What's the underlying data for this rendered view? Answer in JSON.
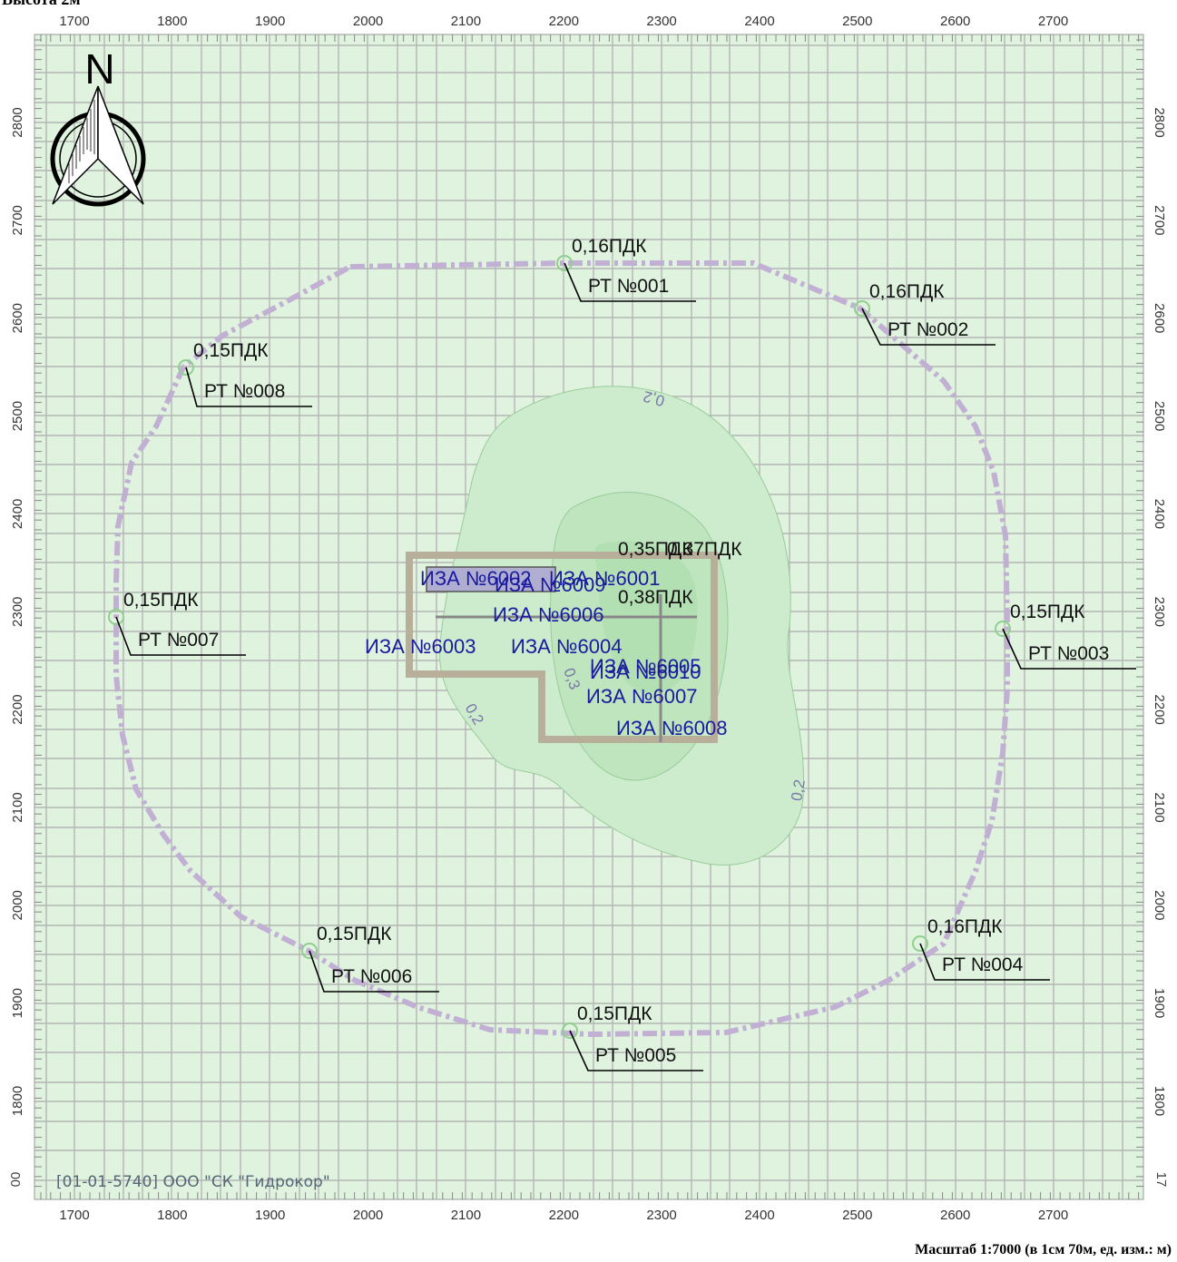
{
  "header": {
    "title": "Высота 2м"
  },
  "footer": {
    "scale_text": "Масштаб 1:7000 (в 1см 70м, ед. изм.: м)"
  },
  "map": {
    "x_ticks": [
      "1700",
      "1800",
      "1900",
      "2000",
      "2100",
      "2200",
      "2300",
      "2400",
      "2500",
      "2600",
      "2700"
    ],
    "y_ticks": [
      "2800",
      "2700",
      "2600",
      "2500",
      "2400",
      "2300",
      "2200",
      "2100",
      "2000",
      "1900",
      "1800"
    ],
    "y_edge_left": "00",
    "y_edge_right": "17",
    "north_label": "N",
    "company_label": "[01-01-5740] ООО \"СК \"Гидрокор\"",
    "colors": {
      "background": "#dff3df",
      "grid": "#b4b4b4",
      "boundary": "#c2b0d4",
      "site": "#b8af9a",
      "source_text": "#1a1aa0",
      "contour": "#99cc99",
      "contour_label": "#7878a8"
    },
    "contour_labels": [
      {
        "id": "c1",
        "text": "0,2"
      },
      {
        "id": "c2",
        "text": "0,2"
      },
      {
        "id": "c3",
        "text": "0,2"
      },
      {
        "id": "c4",
        "text": "0,3"
      }
    ],
    "points": [
      {
        "id": "rt001",
        "value": "0,16ПДК",
        "label": "РТ №001"
      },
      {
        "id": "rt002",
        "value": "0,16ПДК",
        "label": "РТ №002"
      },
      {
        "id": "rt003",
        "value": "0,15ПДК",
        "label": "РТ №003"
      },
      {
        "id": "rt004",
        "value": "0,16ПДК",
        "label": "РТ №004"
      },
      {
        "id": "rt005",
        "value": "0,15ПДК",
        "label": "РТ №005"
      },
      {
        "id": "rt006",
        "value": "0,15ПДК",
        "label": "РТ №006"
      },
      {
        "id": "rt007",
        "value": "0,15ПДК",
        "label": "РТ №007"
      },
      {
        "id": "rt008",
        "value": "0,15ПДК",
        "label": "РТ №008"
      }
    ],
    "inner_values": [
      {
        "id": "v1",
        "text": "0,35ПДК"
      },
      {
        "id": "v2",
        "text": "0,37ПДК"
      },
      {
        "id": "v3",
        "text": "0,38ПДК"
      }
    ],
    "sources": [
      {
        "id": "s6002",
        "text": "ИЗА №6002"
      },
      {
        "id": "s6001",
        "text": "ИЗА №6001"
      },
      {
        "id": "s6009",
        "text": "ИЗА №6009"
      },
      {
        "id": "s6006",
        "text": "ИЗА №6006"
      },
      {
        "id": "s6003",
        "text": "ИЗА №6003"
      },
      {
        "id": "s6004",
        "text": "ИЗА №6004"
      },
      {
        "id": "s6005",
        "text": "ИЗА №6005"
      },
      {
        "id": "s6010",
        "text": "ИЗА №6010"
      },
      {
        "id": "s6007",
        "text": "ИЗА №6007"
      },
      {
        "id": "s6008",
        "text": "ИЗА №6008"
      }
    ]
  }
}
